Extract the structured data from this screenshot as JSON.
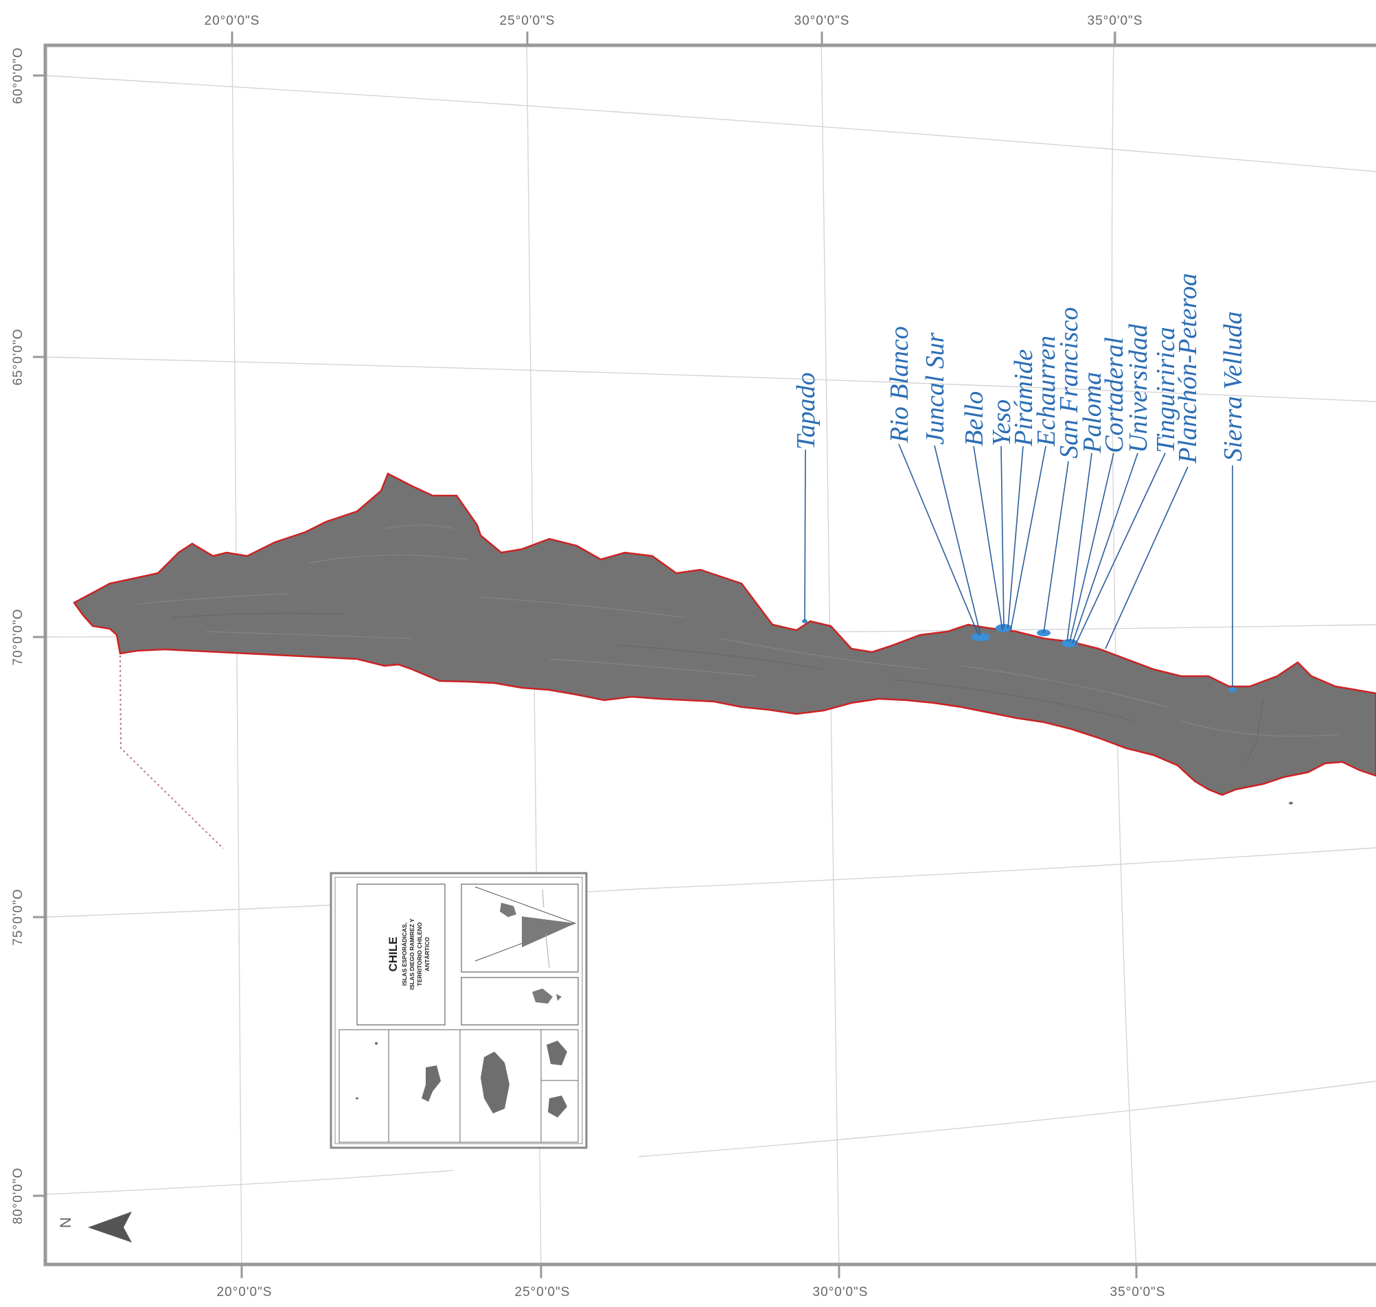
{
  "map": {
    "top_ticks": [
      "20°0'0\"S",
      "25°0'0\"S",
      "30°0'0\"S",
      "35°0'0\"S"
    ],
    "bottom_ticks": [
      "20°0'0\"S",
      "25°0'0\"S",
      "30°0'0\"S",
      "35°0'0\"S"
    ],
    "left_ticks": [
      "60°0'0\"O",
      "65°0'0\"O",
      "70°0'0\"O",
      "75°0'0\"O",
      "80°0'0\"O"
    ],
    "glaciers": [
      "Tapado",
      "Rio Blanco",
      "Juncal Sur",
      "Bello",
      "Yeso",
      "Pirámide",
      "Echaurren",
      "San Francisco",
      "Paloma",
      "Cortaderal",
      "Universidad",
      "Tinguiririca",
      "Planchón-Peteroa",
      "Sierra Velluda"
    ],
    "north_arrow": "N",
    "colors": {
      "land": "#737373",
      "border": "#cc2222",
      "labels": "#2a6db5",
      "leaders": "#2a5d9a",
      "graticule": "#d4d4d4",
      "frame": "#999999"
    }
  },
  "inset": {
    "title": "CHILE",
    "subtitle_lines": [
      "ISLAS ESPORÁDICAS,",
      "ISLAS DIEGO RAMIREZ Y",
      "TERRITORIO CHILENO",
      "ANTÁRTICO"
    ]
  }
}
